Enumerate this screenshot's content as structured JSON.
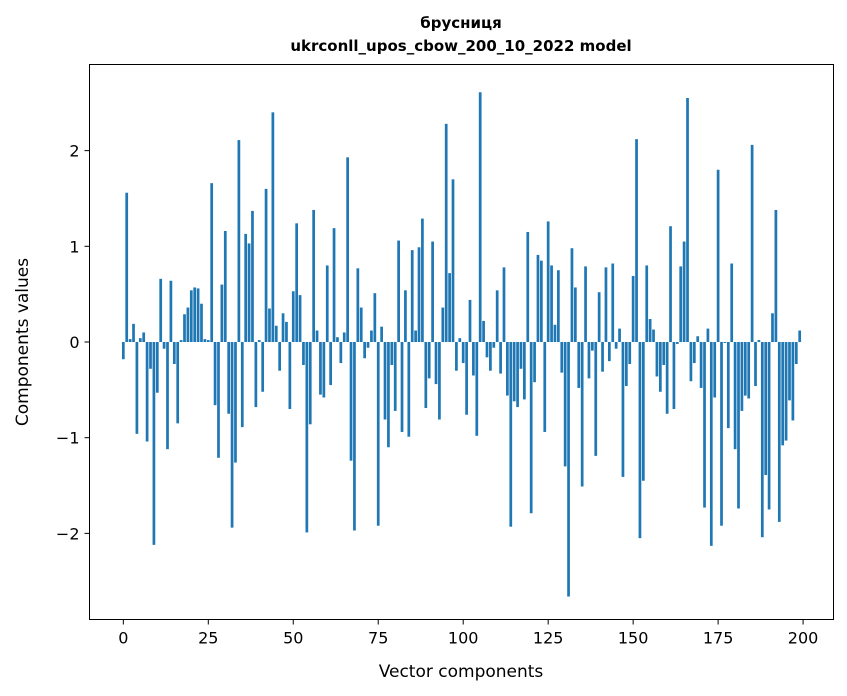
{
  "chart_data": {
    "type": "bar",
    "title_line1": "брусниця",
    "title_line2": "ukrconll_upos_cbow_200_10_2022 model",
    "xlabel": "Vector components",
    "ylabel": "Components values",
    "xlim": [
      -9.95,
      208.95
    ],
    "ylim": [
      -2.9,
      2.9
    ],
    "xticks": [
      0,
      25,
      50,
      75,
      100,
      125,
      150,
      175,
      200
    ],
    "yticks": [
      -2,
      -1,
      0,
      1,
      2
    ],
    "grid": false,
    "bar_color": "#1f77b4",
    "x": [
      0,
      1,
      2,
      3,
      4,
      5,
      6,
      7,
      8,
      9,
      10,
      11,
      12,
      13,
      14,
      15,
      16,
      17,
      18,
      19,
      20,
      21,
      22,
      23,
      24,
      25,
      26,
      27,
      28,
      29,
      30,
      31,
      32,
      33,
      34,
      35,
      36,
      37,
      38,
      39,
      40,
      41,
      42,
      43,
      44,
      45,
      46,
      47,
      48,
      49,
      50,
      51,
      52,
      53,
      54,
      55,
      56,
      57,
      58,
      59,
      60,
      61,
      62,
      63,
      64,
      65,
      66,
      67,
      68,
      69,
      70,
      71,
      72,
      73,
      74,
      75,
      76,
      77,
      78,
      79,
      80,
      81,
      82,
      83,
      84,
      85,
      86,
      87,
      88,
      89,
      90,
      91,
      92,
      93,
      94,
      95,
      96,
      97,
      98,
      99,
      100,
      101,
      102,
      103,
      104,
      105,
      106,
      107,
      108,
      109,
      110,
      111,
      112,
      113,
      114,
      115,
      116,
      117,
      118,
      119,
      120,
      121,
      122,
      123,
      124,
      125,
      126,
      127,
      128,
      129,
      130,
      131,
      132,
      133,
      134,
      135,
      136,
      137,
      138,
      139,
      140,
      141,
      142,
      143,
      144,
      145,
      146,
      147,
      148,
      149,
      150,
      151,
      152,
      153,
      154,
      155,
      156,
      157,
      158,
      159,
      160,
      161,
      162,
      163,
      164,
      165,
      166,
      167,
      168,
      169,
      170,
      171,
      172,
      173,
      174,
      175,
      176,
      177,
      178,
      179,
      180,
      181,
      182,
      183,
      184,
      185,
      186,
      187,
      188,
      189,
      190,
      191,
      192,
      193,
      194,
      195,
      196,
      197,
      198,
      199
    ],
    "values": [
      -0.18,
      1.56,
      0.03,
      0.19,
      -0.96,
      0.04,
      0.1,
      -1.04,
      -0.28,
      -2.12,
      -0.53,
      0.66,
      -0.07,
      -1.12,
      0.64,
      -0.23,
      -0.85,
      0.02,
      0.29,
      0.36,
      0.54,
      0.57,
      0.56,
      0.4,
      0.03,
      0.02,
      1.66,
      -0.66,
      -1.21,
      0.6,
      1.16,
      -0.75,
      -1.94,
      -1.26,
      2.11,
      -0.89,
      1.13,
      1.03,
      1.37,
      -0.68,
      0.02,
      -0.52,
      1.6,
      0.35,
      2.4,
      0.17,
      -0.3,
      0.3,
      0.21,
      -0.7,
      0.53,
      1.24,
      0.49,
      -0.24,
      -1.99,
      -0.86,
      1.38,
      0.12,
      -0.55,
      -0.58,
      0.8,
      -0.45,
      1.19,
      0.05,
      -0.22,
      0.1,
      1.93,
      -1.24,
      -1.97,
      0.77,
      0.36,
      -0.17,
      -0.06,
      0.12,
      0.51,
      -1.92,
      0.16,
      -0.81,
      -1.1,
      -0.24,
      -0.72,
      1.06,
      -0.94,
      0.54,
      -0.99,
      0.96,
      0.12,
      0.99,
      1.29,
      -0.69,
      -0.38,
      1.05,
      -0.44,
      -0.81,
      0.36,
      2.28,
      0.72,
      1.7,
      -0.3,
      0.04,
      -0.22,
      -0.76,
      0.44,
      -0.35,
      -0.98,
      2.61,
      0.22,
      -0.16,
      -0.3,
      -0.06,
      0.54,
      -0.33,
      0.78,
      -0.56,
      -1.93,
      -0.62,
      -0.68,
      -0.28,
      -0.6,
      1.15,
      -1.79,
      -0.42,
      0.91,
      0.85,
      -0.94,
      1.26,
      0.8,
      0.18,
      0.75,
      -0.32,
      -1.3,
      -2.66,
      0.98,
      0.57,
      -0.48,
      -1.51,
      0.79,
      -0.38,
      -0.09,
      -1.19,
      0.52,
      -0.31,
      0.78,
      -0.2,
      0.82,
      -0.07,
      0.14,
      -1.41,
      -0.46,
      -0.23,
      0.69,
      2.12,
      -2.05,
      -1.45,
      0.8,
      0.24,
      0.13,
      -0.36,
      -0.52,
      -0.24,
      -0.75,
      1.21,
      -0.7,
      -0.02,
      0.79,
      1.05,
      2.55,
      -0.41,
      -0.22,
      0.06,
      -0.48,
      -1.73,
      0.14,
      -2.13,
      -0.58,
      1.8,
      -1.92,
      -0.01,
      -0.9,
      0.82,
      -1.12,
      -1.74,
      -0.72,
      -0.56,
      -0.59,
      2.06,
      -0.46,
      0.02,
      -2.04,
      -1.39,
      -1.75,
      0.3,
      1.38,
      -1.88,
      -1.08,
      -1.03,
      -0.61,
      -0.82,
      -0.23,
      0.12
    ]
  }
}
